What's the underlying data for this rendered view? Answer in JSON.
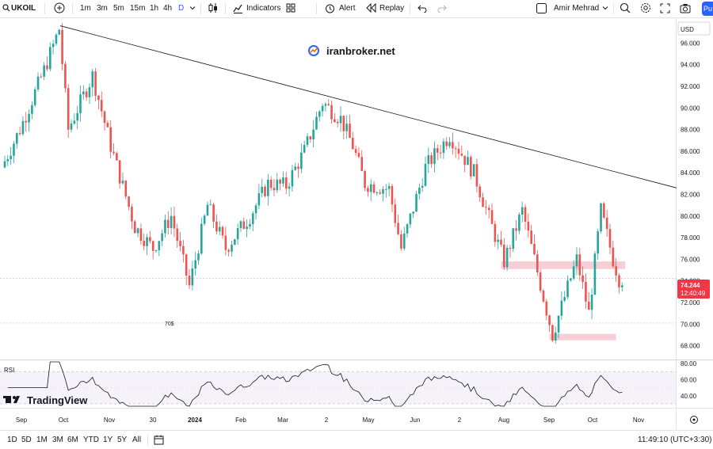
{
  "toolbar": {
    "symbol": "UKOIL",
    "intervals": [
      "1m",
      "3m",
      "5m",
      "15m",
      "1h",
      "4h",
      "D"
    ],
    "active_interval": "D",
    "indicators_label": "Indicators",
    "alert_label": "Alert",
    "replay_label": "Replay",
    "user_name": "Amir Mehrad",
    "publish_label": "Pu"
  },
  "watermark": {
    "site": "iranbroker.net"
  },
  "chart_data": {
    "type": "candlestick",
    "symbol": "UKOIL",
    "interval": "D",
    "currency": "USD",
    "price_axis_ticks": [
      96,
      94,
      92,
      90,
      88,
      86,
      84,
      82,
      80,
      78,
      76,
      74,
      72,
      70,
      68
    ],
    "price_range": [
      66.8,
      98.3
    ],
    "time_axis_labels": [
      "Sep",
      "Oct",
      "Nov",
      "30",
      "2024",
      "Feb",
      "Mar",
      "2",
      "May",
      "Jun",
      "2",
      "Aug",
      "Sep",
      "Oct",
      "Nov"
    ],
    "last_price": "74.244",
    "countdown": "12:40:49",
    "trendline": {
      "from": [
        0,
        97.6
      ],
      "to": [
        221,
        82.6
      ]
    },
    "zones": [
      {
        "from_bar": 164,
        "to_bar": 205,
        "low": 75.1,
        "high": 75.8,
        "color": "#f7c6cf"
      },
      {
        "from_bar": 180,
        "to_bar": 202,
        "low": 68.5,
        "high": 69.1,
        "color": "#f7c6cf"
      }
    ],
    "level_line": {
      "price": 70.1,
      "label": "70$"
    },
    "rsi": {
      "label": "RSI",
      "axis_ticks": [
        80,
        60,
        40
      ],
      "levels": [
        70,
        30
      ],
      "range": [
        26,
        83
      ]
    }
  },
  "bottom": {
    "ranges": [
      "1D",
      "5D",
      "1M",
      "3M",
      "6M",
      "YTD",
      "1Y",
      "5Y",
      "All"
    ],
    "clock": "11:49:10 (UTC+3:30)"
  },
  "branding": {
    "logo_text": "TradingView"
  },
  "colors": {
    "up": "#26a69a",
    "down": "#ef5350",
    "accent": "#2962ff",
    "last_price": "#f23645"
  }
}
